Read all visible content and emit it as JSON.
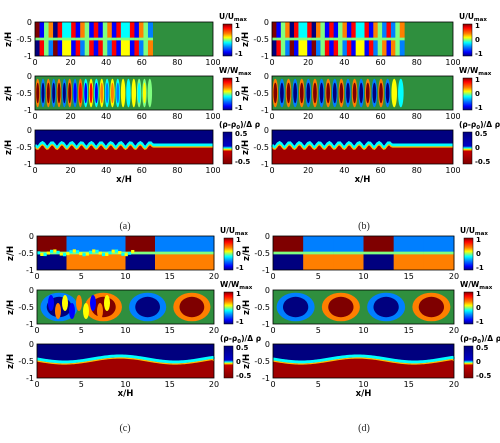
{
  "captions": [
    "(a)",
    "(b)",
    "(c)",
    "(d)"
  ],
  "colorbars": {
    "u": {
      "title_main": "U/U",
      "title_sub": "max",
      "ticks": [
        "1",
        "0",
        "-1"
      ]
    },
    "w": {
      "title_main": "W/W",
      "title_sub": "max",
      "ticks": [
        "1",
        "0",
        "-1"
      ]
    },
    "rho": {
      "title_main": "(ρ-ρ",
      "title_sub": "0",
      "title_tail": ")/Δ ρ",
      "ticks": [
        "0.5",
        "0",
        "-0.5"
      ]
    }
  },
  "axes": {
    "ylabel": "z/H",
    "xlabel": "x/H",
    "y_ticks": [
      "0",
      "-0.5",
      "-1"
    ],
    "x_ticks_long": [
      "0",
      "20",
      "40",
      "60",
      "80",
      "100"
    ],
    "x_ticks_short": [
      "0",
      "5",
      "10",
      "15",
      "20"
    ]
  },
  "colors": {
    "jet": [
      "#00007f",
      "#0000ff",
      "#007fff",
      "#00ffff",
      "#7fff7f",
      "#ffff00",
      "#ff7f00",
      "#ff0000",
      "#7f0000"
    ],
    "background_field": "#2f8f3e"
  }
}
